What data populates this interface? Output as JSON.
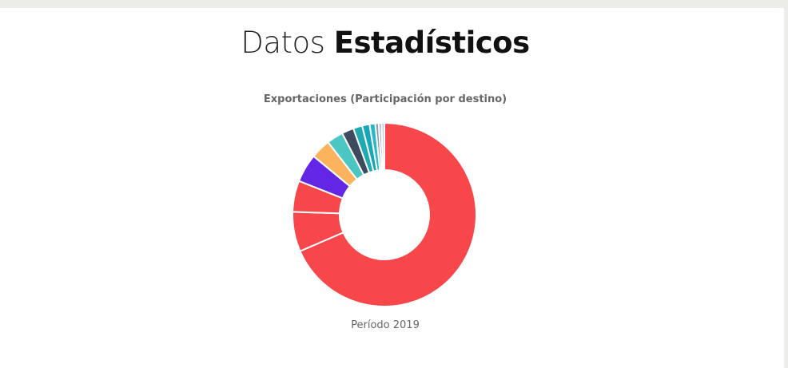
{
  "heading": {
    "light": "Datos",
    "bold": "Estadísticos"
  },
  "chart_data": {
    "type": "pie",
    "title": "Exportaciones (Participación por destino)",
    "subtitle": "Período 2019",
    "donut": true,
    "slices": [
      {
        "value": 68.5,
        "color": "#f7474b"
      },
      {
        "value": 7.0,
        "color": "#f7474b"
      },
      {
        "value": 5.5,
        "color": "#f7474b"
      },
      {
        "value": 5.0,
        "color": "#6226e4"
      },
      {
        "value": 3.5,
        "color": "#fdb35e"
      },
      {
        "value": 2.9,
        "color": "#4cc6c3"
      },
      {
        "value": 2.1,
        "color": "#3e4a5e"
      },
      {
        "value": 1.6,
        "color": "#1faab2"
      },
      {
        "value": 1.3,
        "color": "#15a6b9"
      },
      {
        "value": 1.0,
        "color": "#29b9c6"
      },
      {
        "value": 0.6,
        "color": "#8a98b0"
      },
      {
        "value": 0.5,
        "color": "#9faac4"
      },
      {
        "value": 0.5,
        "color": "#c1c9dc"
      }
    ]
  }
}
